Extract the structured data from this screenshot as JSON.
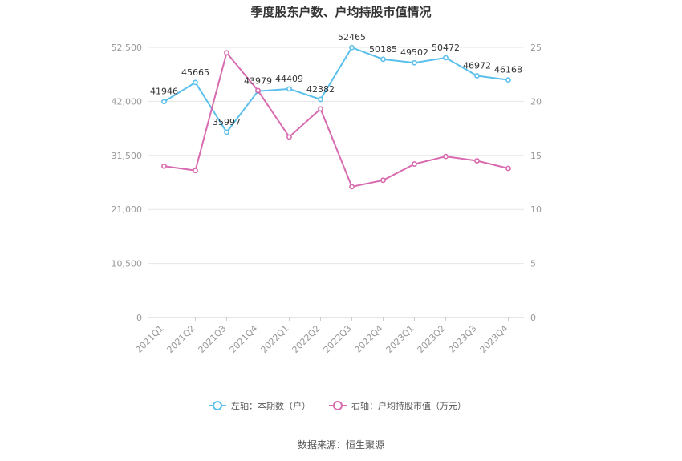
{
  "chart_data": {
    "type": "line",
    "title": "季度股东户数、户均持股市值情况",
    "categories": [
      "2021Q1",
      "2021Q2",
      "2021Q3",
      "2021Q4",
      "2022Q1",
      "2022Q2",
      "2022Q3",
      "2022Q4",
      "2023Q1",
      "2023Q2",
      "2023Q3",
      "2023Q4"
    ],
    "series": [
      {
        "name": "左轴：本期数（户）",
        "axis": "left",
        "color": "#5bc0eb",
        "values": [
          41946,
          45665,
          35997,
          43979,
          44409,
          42382,
          52465,
          50185,
          49502,
          50472,
          46972,
          46168
        ],
        "data_labels": [
          "41946",
          "45665",
          "35997",
          "43979",
          "44409",
          "42382",
          "52465",
          "50185",
          "49502",
          "50472",
          "46972",
          "46168"
        ]
      },
      {
        "name": "右轴：户均持股市值（万元）",
        "axis": "right",
        "color": "#d86aaf",
        "values": [
          14.0,
          13.6,
          24.5,
          21.0,
          16.7,
          19.3,
          12.1,
          12.7,
          14.2,
          14.9,
          14.5,
          13.8
        ]
      }
    ],
    "left_axis": {
      "ticks": [
        0,
        10500,
        21000,
        31500,
        42000,
        52500
      ],
      "tick_labels": [
        "0",
        "10,500",
        "21,000",
        "31,500",
        "42,000",
        "52,500"
      ],
      "ylim": [
        0,
        52500
      ]
    },
    "right_axis": {
      "ticks": [
        0,
        5,
        10,
        15,
        20,
        25
      ],
      "tick_labels": [
        "0",
        "5",
        "10",
        "15",
        "20",
        "25"
      ],
      "ylim": [
        0,
        25
      ]
    },
    "grid": true,
    "legend_position": "bottom"
  },
  "source_text": "数据来源：恒生聚源"
}
